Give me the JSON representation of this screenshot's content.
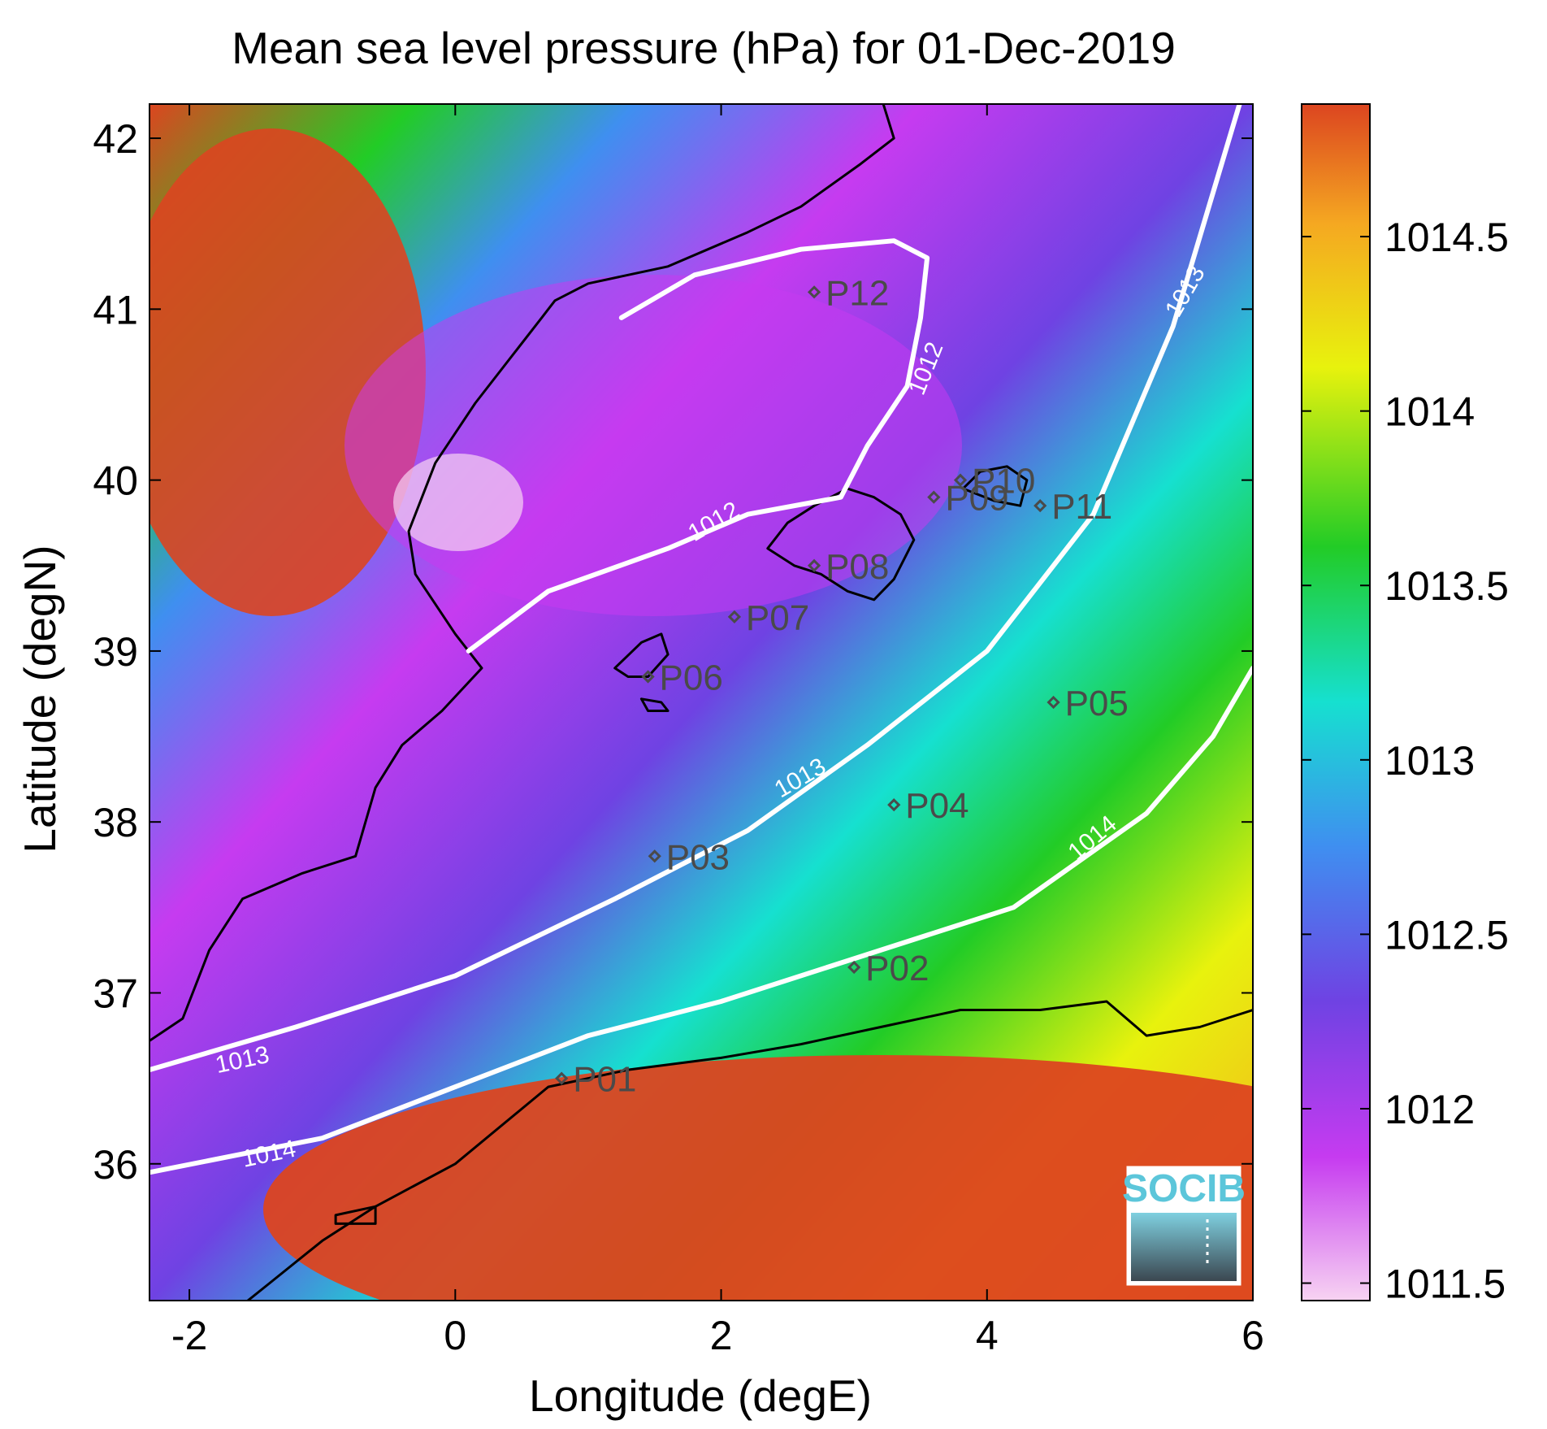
{
  "title": "Mean sea level pressure (hPa) for 01-Dec-2019",
  "xlabel": "Longitude (degE)",
  "ylabel": "Latitude (degN)",
  "xlim": [
    -2.3,
    6.0
  ],
  "ylim": [
    35.2,
    42.2
  ],
  "x_ticks": [
    {
      "value": -2,
      "label": "-2"
    },
    {
      "value": 0,
      "label": "0"
    },
    {
      "value": 2,
      "label": "2"
    },
    {
      "value": 4,
      "label": "4"
    },
    {
      "value": 6,
      "label": "6"
    }
  ],
  "y_ticks": [
    {
      "value": 36,
      "label": "36"
    },
    {
      "value": 37,
      "label": "37"
    },
    {
      "value": 38,
      "label": "38"
    },
    {
      "value": 39,
      "label": "39"
    },
    {
      "value": 40,
      "label": "40"
    },
    {
      "value": 41,
      "label": "41"
    },
    {
      "value": 42,
      "label": "42"
    }
  ],
  "colorbar": {
    "range": [
      1011.45,
      1014.88
    ],
    "ticks": [
      {
        "value": 1011.5,
        "label": "1011.5"
      },
      {
        "value": 1012,
        "label": "1012"
      },
      {
        "value": 1012.5,
        "label": "1012.5"
      },
      {
        "value": 1013,
        "label": "1013"
      },
      {
        "value": 1013.5,
        "label": "1013.5"
      },
      {
        "value": 1014,
        "label": "1014"
      },
      {
        "value": 1014.5,
        "label": "1014.5"
      }
    ],
    "colors": [
      "#f7d3f2",
      "#c63bf0",
      "#6f42e3",
      "#3f8ff0",
      "#16e0d0",
      "#22cc26",
      "#e8f20d",
      "#f5a821",
      "#dc4520"
    ]
  },
  "contours": [
    {
      "level": 1012,
      "label": "1012",
      "path": [
        [
          0.1,
          39.0
        ],
        [
          0.7,
          39.35
        ],
        [
          1.6,
          39.6
        ],
        [
          2.2,
          39.8
        ],
        [
          2.9,
          39.9
        ],
        [
          3.1,
          40.2
        ],
        [
          3.4,
          40.55
        ],
        [
          3.5,
          40.95
        ],
        [
          3.55,
          41.3
        ],
        [
          3.3,
          41.4
        ],
        [
          2.6,
          41.35
        ],
        [
          1.8,
          41.2
        ],
        [
          1.25,
          40.95
        ]
      ],
      "labels": [
        {
          "text": "1012",
          "lon": 1.95,
          "lat": 39.75,
          "rot": -30
        },
        {
          "text": "1012",
          "lon": 3.55,
          "lat": 40.65,
          "rot": -68
        }
      ]
    },
    {
      "level": 1013,
      "label": "1013",
      "path": [
        [
          -2.3,
          36.55
        ],
        [
          -1.2,
          36.8
        ],
        [
          0.0,
          37.1
        ],
        [
          1.2,
          37.55
        ],
        [
          2.2,
          37.95
        ],
        [
          3.1,
          38.45
        ],
        [
          4.0,
          39.0
        ],
        [
          4.8,
          39.8
        ],
        [
          5.4,
          40.9
        ],
        [
          5.9,
          42.2
        ]
      ],
      "labels": [
        {
          "text": "1013",
          "lon": -1.6,
          "lat": 36.6,
          "rot": -12
        },
        {
          "text": "1013",
          "lon": 2.6,
          "lat": 38.25,
          "rot": -30
        },
        {
          "text": "1013",
          "lon": 5.5,
          "lat": 41.1,
          "rot": -60
        }
      ]
    },
    {
      "level": 1014,
      "label": "1014",
      "path": [
        [
          -2.3,
          35.95
        ],
        [
          -1.0,
          36.15
        ],
        [
          0.0,
          36.45
        ],
        [
          1.0,
          36.75
        ],
        [
          2.0,
          36.95
        ],
        [
          3.0,
          37.2
        ],
        [
          4.2,
          37.5
        ],
        [
          5.2,
          38.05
        ],
        [
          5.7,
          38.5
        ],
        [
          6.0,
          38.9
        ]
      ],
      "labels": [
        {
          "text": "1014",
          "lon": -1.4,
          "lat": 36.05,
          "rot": -12
        },
        {
          "text": "1014",
          "lon": 4.8,
          "lat": 37.9,
          "rot": -40
        }
      ]
    }
  ],
  "coastlines": [
    {
      "name": "iberia-east-coast",
      "closed": false,
      "path": [
        [
          -2.3,
          36.72
        ],
        [
          -2.05,
          36.85
        ],
        [
          -1.85,
          37.25
        ],
        [
          -1.6,
          37.55
        ],
        [
          -1.15,
          37.7
        ],
        [
          -0.75,
          37.8
        ],
        [
          -0.6,
          38.2
        ],
        [
          -0.4,
          38.45
        ],
        [
          -0.1,
          38.65
        ],
        [
          0.2,
          38.9
        ],
        [
          0.0,
          39.1
        ],
        [
          -0.3,
          39.45
        ],
        [
          -0.35,
          39.7
        ],
        [
          -0.15,
          40.1
        ],
        [
          0.15,
          40.45
        ],
        [
          0.65,
          40.95
        ],
        [
          0.75,
          41.05
        ],
        [
          1.0,
          41.15
        ],
        [
          1.6,
          41.25
        ],
        [
          2.2,
          41.45
        ],
        [
          2.6,
          41.6
        ],
        [
          3.05,
          41.85
        ],
        [
          3.3,
          42.0
        ],
        [
          3.2,
          42.25
        ]
      ]
    },
    {
      "name": "africa-north-coast",
      "closed": false,
      "path": [
        [
          -1.8,
          35.05
        ],
        [
          -1.4,
          35.3
        ],
        [
          -1.0,
          35.55
        ],
        [
          -0.6,
          35.75
        ],
        [
          0.0,
          36.0
        ],
        [
          0.7,
          36.45
        ],
        [
          1.3,
          36.55
        ],
        [
          2.0,
          36.62
        ],
        [
          2.6,
          36.7
        ],
        [
          3.2,
          36.8
        ],
        [
          3.8,
          36.9
        ],
        [
          4.4,
          36.9
        ],
        [
          4.9,
          36.95
        ],
        [
          5.2,
          36.75
        ],
        [
          5.6,
          36.8
        ],
        [
          6.0,
          36.9
        ]
      ]
    },
    {
      "name": "mallorca",
      "closed": true,
      "path": [
        [
          2.35,
          39.6
        ],
        [
          2.55,
          39.5
        ],
        [
          2.75,
          39.45
        ],
        [
          2.95,
          39.35
        ],
        [
          3.15,
          39.3
        ],
        [
          3.3,
          39.42
        ],
        [
          3.45,
          39.65
        ],
        [
          3.35,
          39.8
        ],
        [
          3.15,
          39.9
        ],
        [
          2.95,
          39.95
        ],
        [
          2.7,
          39.85
        ],
        [
          2.5,
          39.75
        ]
      ]
    },
    {
      "name": "menorca",
      "closed": true,
      "path": [
        [
          3.82,
          39.95
        ],
        [
          3.95,
          40.05
        ],
        [
          4.15,
          40.08
        ],
        [
          4.3,
          40.0
        ],
        [
          4.25,
          39.85
        ],
        [
          4.05,
          39.88
        ]
      ]
    },
    {
      "name": "ibiza",
      "closed": true,
      "path": [
        [
          1.2,
          38.9
        ],
        [
          1.4,
          39.05
        ],
        [
          1.55,
          39.1
        ],
        [
          1.6,
          38.98
        ],
        [
          1.45,
          38.85
        ],
        [
          1.3,
          38.85
        ]
      ]
    },
    {
      "name": "formentera",
      "closed": true,
      "path": [
        [
          1.4,
          38.72
        ],
        [
          1.55,
          38.7
        ],
        [
          1.6,
          38.65
        ],
        [
          1.45,
          38.65
        ]
      ]
    },
    {
      "name": "alboran-island",
      "closed": true,
      "path": [
        [
          -0.9,
          35.7
        ],
        [
          -0.6,
          35.75
        ],
        [
          -0.6,
          35.65
        ],
        [
          -0.9,
          35.65
        ]
      ]
    }
  ],
  "stations": [
    {
      "name": "P01",
      "lon": 0.8,
      "lat": 36.5
    },
    {
      "name": "P02",
      "lon": 3.0,
      "lat": 37.15
    },
    {
      "name": "P03",
      "lon": 1.5,
      "lat": 37.8
    },
    {
      "name": "P04",
      "lon": 3.3,
      "lat": 38.1
    },
    {
      "name": "P05",
      "lon": 4.5,
      "lat": 38.7
    },
    {
      "name": "P06",
      "lon": 1.45,
      "lat": 38.85
    },
    {
      "name": "P07",
      "lon": 2.1,
      "lat": 39.2
    },
    {
      "name": "P08",
      "lon": 2.7,
      "lat": 39.5
    },
    {
      "name": "P09",
      "lon": 3.6,
      "lat": 39.9
    },
    {
      "name": "P10",
      "lon": 3.8,
      "lat": 40.0
    },
    {
      "name": "P11",
      "lon": 4.4,
      "lat": 39.85
    },
    {
      "name": "P12",
      "lon": 2.7,
      "lat": 41.1
    }
  ],
  "logo": {
    "text": "SOCIB"
  }
}
